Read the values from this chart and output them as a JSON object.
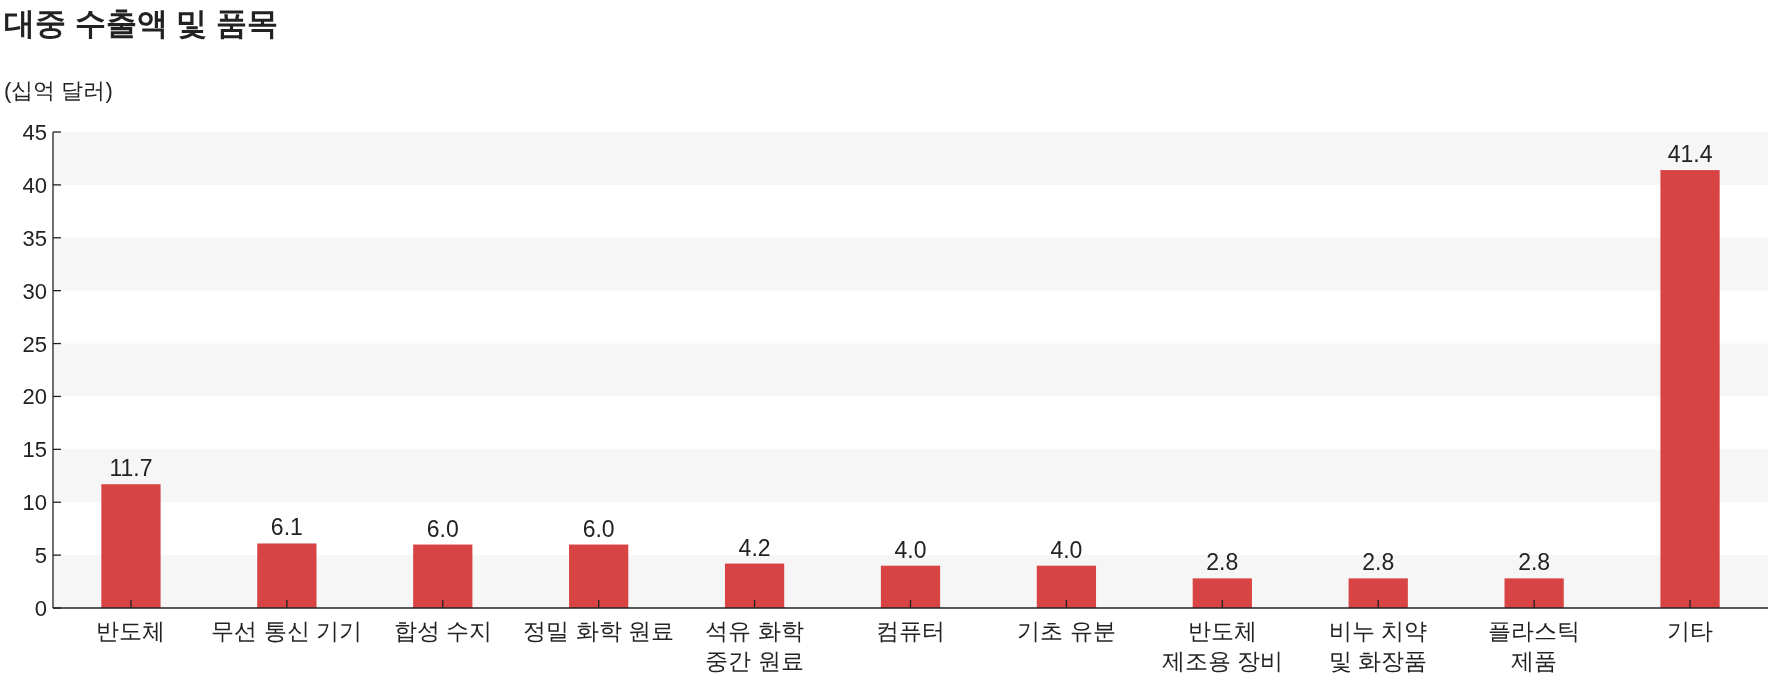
{
  "chart_data": {
    "type": "bar",
    "title": "대중 수출액 및 품목",
    "ylabel": "(십억 달러)",
    "categories": [
      "반도체",
      "무선 통신 기기",
      "합성 수지",
      "정밀 화학 원료",
      "석유 화학\n중간 원료",
      "컴퓨터",
      "기초 유분",
      "반도체\n제조용 장비",
      "비누 치약\n및 화장품",
      "플라스틱\n제품",
      "기타"
    ],
    "values": [
      11.7,
      6.1,
      6.0,
      6.0,
      4.2,
      4.0,
      4.0,
      2.8,
      2.8,
      2.8,
      41.4
    ],
    "value_labels": [
      "11.7",
      "6.1",
      "6.0",
      "6.0",
      "4.2",
      "4.0",
      "4.0",
      "2.8",
      "2.8",
      "2.8",
      "41.4"
    ],
    "color": "#d84343",
    "ylim": [
      0,
      45
    ],
    "yticks": [
      0,
      5,
      10,
      15,
      20,
      25,
      30,
      35,
      40,
      45
    ],
    "bands": [
      {
        "axis": "y",
        "from": 0,
        "to": 5,
        "color": "#f6f6f6"
      },
      {
        "axis": "y",
        "from": 10,
        "to": 15,
        "color": "#f6f6f6"
      },
      {
        "axis": "y",
        "from": 20,
        "to": 25,
        "color": "#f6f6f6"
      },
      {
        "axis": "y",
        "from": 30,
        "to": 35,
        "color": "#f6f6f6"
      },
      {
        "axis": "y",
        "from": 40,
        "to": 45,
        "color": "#f6f6f6"
      }
    ],
    "grid": false
  }
}
